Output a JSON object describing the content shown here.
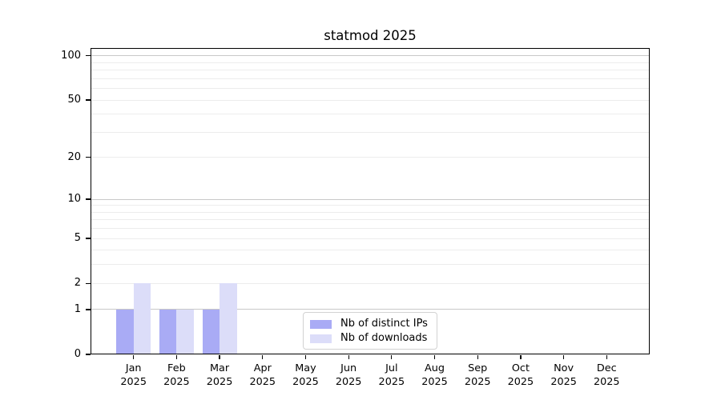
{
  "title": "statmod 2025",
  "chart_data": {
    "type": "bar",
    "title": "statmod 2025",
    "x_categories": [
      {
        "month": "Jan",
        "year": "2025"
      },
      {
        "month": "Feb",
        "year": "2025"
      },
      {
        "month": "Mar",
        "year": "2025"
      },
      {
        "month": "Apr",
        "year": "2025"
      },
      {
        "month": "May",
        "year": "2025"
      },
      {
        "month": "Jun",
        "year": "2025"
      },
      {
        "month": "Jul",
        "year": "2025"
      },
      {
        "month": "Aug",
        "year": "2025"
      },
      {
        "month": "Sep",
        "year": "2025"
      },
      {
        "month": "Oct",
        "year": "2025"
      },
      {
        "month": "Nov",
        "year": "2025"
      },
      {
        "month": "Dec",
        "year": "2025"
      }
    ],
    "series": [
      {
        "name": "Nb of distinct IPs",
        "color": "#a9abf5",
        "values": [
          1,
          1,
          1,
          0,
          0,
          0,
          0,
          0,
          0,
          0,
          0,
          0
        ]
      },
      {
        "name": "Nb of downloads",
        "color": "#dcddf9",
        "values": [
          2,
          1,
          2,
          0,
          0,
          0,
          0,
          0,
          0,
          0,
          0,
          0
        ]
      }
    ],
    "y_axis": {
      "scale": "log10(1+x)",
      "tick_values": [
        0,
        1,
        2,
        5,
        10,
        20,
        50,
        100
      ],
      "ylim": [
        0,
        113
      ]
    },
    "grid": {
      "major_values": [
        1,
        10,
        100
      ],
      "minor_values": [
        2,
        3,
        4,
        5,
        6,
        7,
        8,
        9,
        20,
        30,
        40,
        50,
        60,
        70,
        80,
        90
      ],
      "major_color": "#c9c9c9",
      "minor_color": "#ececec"
    },
    "legend_position": "bottom-center"
  }
}
